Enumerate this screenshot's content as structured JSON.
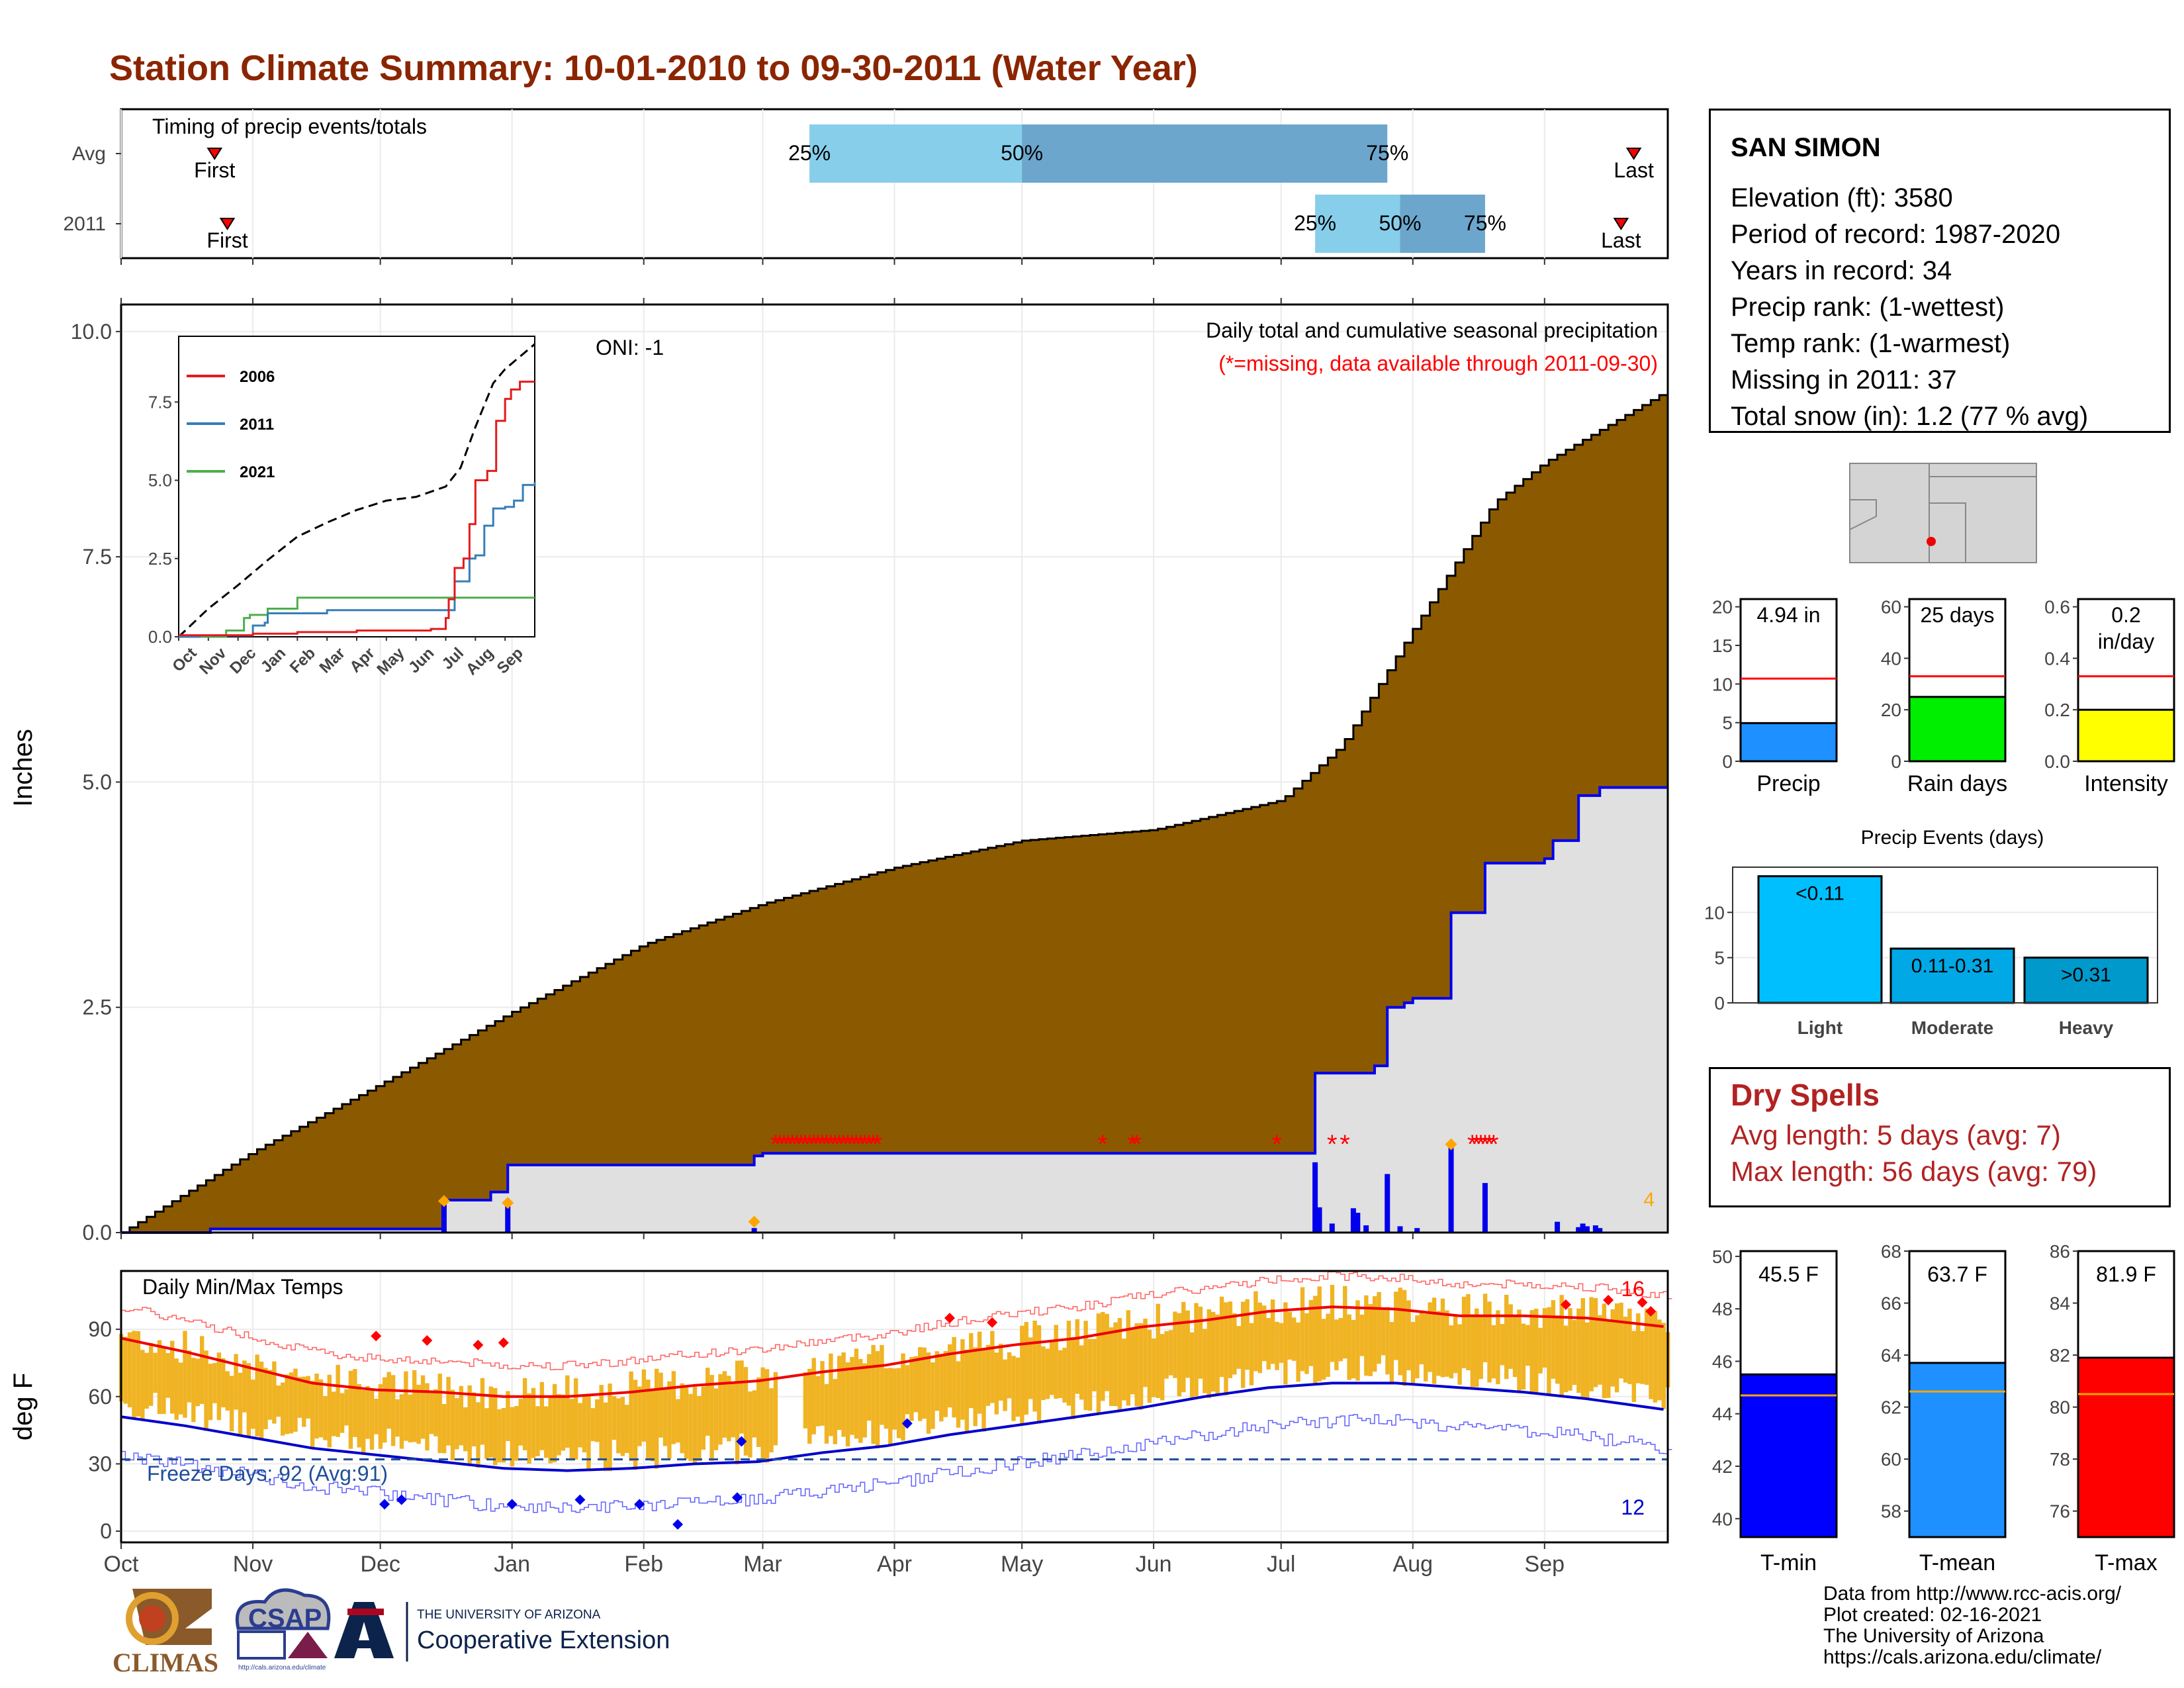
{
  "title": "Station Climate Summary: 10-01-2010 to 09-30-2011 (Water Year)",
  "station": {
    "name": "SAN SIMON",
    "lines": [
      "Elevation (ft): 3580",
      "Period of record: 1987-2020",
      "Years in record: 34",
      "Precip rank:  (1-wettest)",
      "Temp rank:  (1-warmest)",
      "Missing in 2011: 37",
      "Total snow (in): 1.2 (77 % avg)"
    ]
  },
  "timing_panel": {
    "label": "Timing of precip events/totals",
    "rows": [
      {
        "name": "Avg",
        "first": "2010-10-23",
        "p25": "2011-03-12",
        "p50": "2011-05-01",
        "p75": "2011-07-26",
        "last": "2011-09-22",
        "first_label": "First",
        "last_label": "Last",
        "p25_label": "25%",
        "p50_label": "50%",
        "p75_label": "75%"
      },
      {
        "name": "2011",
        "first": "2010-10-26",
        "p25": "2011-07-09",
        "p50": "2011-07-29",
        "p75": "2011-08-18",
        "last": "2011-09-19",
        "first_label": "First",
        "last_label": "Last",
        "p25_label": "25%",
        "p50_label": "50%",
        "p75_label": "75%"
      }
    ]
  },
  "precip_panel": {
    "ylabel": "Inches",
    "y_ticks": [
      "0.0",
      "2.5",
      "5.0",
      "7.5",
      "10.0"
    ],
    "ylim": [
      0,
      10.3
    ],
    "oni_label": "ONI: -1",
    "header": "Daily total and cumulative seasonal precipitation",
    "missing_note": "(*=missing, data available through 2011-09-30)",
    "corner_count": "4",
    "avg_cumulative_knots": [
      [
        "2010-10-01",
        0.0
      ],
      [
        "2010-11-01",
        0.9
      ],
      [
        "2010-12-01",
        1.65
      ],
      [
        "2011-01-01",
        2.45
      ],
      [
        "2011-02-01",
        3.2
      ],
      [
        "2011-03-01",
        3.65
      ],
      [
        "2011-04-01",
        4.05
      ],
      [
        "2011-05-01",
        4.35
      ],
      [
        "2011-06-01",
        4.47
      ],
      [
        "2011-07-01",
        4.8
      ],
      [
        "2011-07-15",
        5.4
      ],
      [
        "2011-08-01",
        6.7
      ],
      [
        "2011-08-20",
        8.1
      ],
      [
        "2011-09-01",
        8.55
      ],
      [
        "2011-09-30",
        9.35
      ]
    ],
    "cumulative_2011_steps": [
      [
        "2010-10-01",
        0.0
      ],
      [
        "2010-10-22",
        0.04
      ],
      [
        "2011-12-16",
        0.0
      ],
      [
        "2010-12-16",
        0.36
      ],
      [
        "2010-12-27",
        0.45
      ],
      [
        "2010-12-31",
        0.75
      ],
      [
        "2011-02-27",
        0.85
      ],
      [
        "2011-03-01",
        0.88
      ],
      [
        "2011-07-09",
        1.77
      ],
      [
        "2011-07-23",
        1.85
      ],
      [
        "2011-07-26",
        2.5
      ],
      [
        "2011-07-30",
        2.55
      ],
      [
        "2011-08-01",
        2.6
      ],
      [
        "2011-08-10",
        3.55
      ],
      [
        "2011-08-18",
        4.1
      ],
      [
        "2011-09-01",
        4.15
      ],
      [
        "2011-09-03",
        4.35
      ],
      [
        "2011-09-09",
        4.85
      ],
      [
        "2011-09-14",
        4.94
      ],
      [
        "2011-09-30",
        4.94
      ]
    ],
    "daily_bars": [
      [
        "2010-12-16",
        0.32
      ],
      [
        "2010-12-31",
        0.3
      ],
      [
        "2011-02-27",
        0.05
      ],
      [
        "2011-07-09",
        0.78
      ],
      [
        "2011-07-10",
        0.28
      ],
      [
        "2011-07-13",
        0.1
      ],
      [
        "2011-07-18",
        0.27
      ],
      [
        "2011-07-19",
        0.22
      ],
      [
        "2011-07-21",
        0.08
      ],
      [
        "2011-07-26",
        0.65
      ],
      [
        "2011-07-29",
        0.07
      ],
      [
        "2011-08-02",
        0.05
      ],
      [
        "2011-08-10",
        0.95
      ],
      [
        "2011-08-18",
        0.55
      ],
      [
        "2011-09-04",
        0.12
      ],
      [
        "2011-09-09",
        0.06
      ],
      [
        "2011-09-10",
        0.1
      ],
      [
        "2011-09-11",
        0.07
      ],
      [
        "2011-09-13",
        0.08
      ],
      [
        "2011-09-14",
        0.05
      ]
    ],
    "orange_markers": [
      [
        "2010-12-16",
        0.35
      ],
      [
        "2010-12-31",
        0.33
      ],
      [
        "2011-02-27",
        0.12
      ],
      [
        "2011-08-10",
        0.98
      ]
    ],
    "missing_markers": [
      "2011-03-04",
      "2011-03-05",
      "2011-03-06",
      "2011-03-07",
      "2011-03-08",
      "2011-03-09",
      "2011-03-10",
      "2011-03-11",
      "2011-03-12",
      "2011-03-13",
      "2011-03-14",
      "2011-03-15",
      "2011-03-16",
      "2011-03-17",
      "2011-03-18",
      "2011-03-19",
      "2011-03-20",
      "2011-03-21",
      "2011-03-22",
      "2011-03-23",
      "2011-03-24",
      "2011-03-25",
      "2011-03-26",
      "2011-03-27",
      "2011-03-28",
      "2011-05-20",
      "2011-05-27",
      "2011-05-28",
      "2011-06-30",
      "2011-07-13",
      "2011-07-16",
      "2011-08-15",
      "2011-08-16",
      "2011-08-17",
      "2011-08-18",
      "2011-08-19",
      "2011-08-20"
    ]
  },
  "inset": {
    "legend": [
      "2006",
      "2011",
      "2021"
    ],
    "colors": [
      "#e41a1c",
      "#377eb8",
      "#4daf4a"
    ],
    "y_ticks": [
      "0.0",
      "2.5",
      "5.0",
      "7.5"
    ],
    "months": [
      "Oct",
      "Nov",
      "Dec",
      "Jan",
      "Feb",
      "Mar",
      "Apr",
      "May",
      "Jun",
      "Jul",
      "Aug",
      "Sep"
    ],
    "avg": [
      [
        0,
        0
      ],
      [
        1,
        0.9
      ],
      [
        2,
        1.65
      ],
      [
        3,
        2.45
      ],
      [
        4,
        3.2
      ],
      [
        5,
        3.65
      ],
      [
        6,
        4.05
      ],
      [
        7,
        4.35
      ],
      [
        8,
        4.47
      ],
      [
        9,
        4.8
      ],
      [
        9.5,
        5.4
      ],
      [
        10,
        6.7
      ],
      [
        10.6,
        8.1
      ],
      [
        11,
        8.55
      ],
      [
        12,
        9.35
      ]
    ],
    "series_2006": [
      [
        0,
        0.05
      ],
      [
        2.5,
        0.1
      ],
      [
        4,
        0.15
      ],
      [
        6,
        0.2
      ],
      [
        8.5,
        0.25
      ],
      [
        9,
        0.6
      ],
      [
        9.1,
        1.2
      ],
      [
        9.3,
        2.2
      ],
      [
        9.6,
        2.5
      ],
      [
        9.8,
        3.6
      ],
      [
        10.0,
        5.0
      ],
      [
        10.4,
        5.3
      ],
      [
        10.7,
        6.9
      ],
      [
        11,
        7.6
      ],
      [
        11.2,
        7.9
      ],
      [
        11.5,
        8.15
      ],
      [
        12,
        8.15
      ]
    ],
    "series_2011": [
      [
        0,
        0
      ],
      [
        0.7,
        0.04
      ],
      [
        2.5,
        0.36
      ],
      [
        2.9,
        0.45
      ],
      [
        3.0,
        0.75
      ],
      [
        5,
        0.85
      ],
      [
        9.3,
        1.77
      ],
      [
        9.8,
        2.5
      ],
      [
        10.0,
        2.6
      ],
      [
        10.3,
        3.55
      ],
      [
        10.6,
        4.1
      ],
      [
        11,
        4.15
      ],
      [
        11.3,
        4.35
      ],
      [
        11.6,
        4.85
      ],
      [
        12,
        4.94
      ]
    ],
    "series_2021": [
      [
        0,
        0
      ],
      [
        1.6,
        0.2
      ],
      [
        2.2,
        0.6
      ],
      [
        2.4,
        0.7
      ],
      [
        3.0,
        0.9
      ],
      [
        4.0,
        1.25
      ],
      [
        12,
        1.25
      ]
    ]
  },
  "temp_panel": {
    "label": "Daily Min/Max Temps",
    "ylabel": "deg F",
    "y_ticks": [
      "0",
      "30",
      "60",
      "90"
    ],
    "ylim": [
      -5,
      116
    ],
    "freeze_label": "Freeze Days: 92 (Avg:91)",
    "max_count": "16",
    "min_count": "12",
    "freeze_line": 32,
    "avg_tmax_knots": [
      [
        0,
        86
      ],
      [
        15,
        80
      ],
      [
        30,
        73
      ],
      [
        45,
        66
      ],
      [
        60,
        63
      ],
      [
        75,
        62
      ],
      [
        90,
        60
      ],
      [
        105,
        60
      ],
      [
        120,
        62
      ],
      [
        135,
        65
      ],
      [
        150,
        67
      ],
      [
        165,
        71
      ],
      [
        180,
        74
      ],
      [
        195,
        79
      ],
      [
        210,
        83
      ],
      [
        225,
        86
      ],
      [
        240,
        91
      ],
      [
        255,
        94
      ],
      [
        270,
        98
      ],
      [
        285,
        100
      ],
      [
        300,
        99
      ],
      [
        315,
        96
      ],
      [
        330,
        96
      ],
      [
        345,
        95
      ],
      [
        364,
        91
      ]
    ],
    "avg_tmin_knots": [
      [
        0,
        51
      ],
      [
        15,
        47
      ],
      [
        30,
        42
      ],
      [
        45,
        37
      ],
      [
        60,
        34
      ],
      [
        75,
        31
      ],
      [
        90,
        28
      ],
      [
        105,
        27
      ],
      [
        120,
        28
      ],
      [
        135,
        30
      ],
      [
        150,
        31
      ],
      [
        165,
        35
      ],
      [
        180,
        38
      ],
      [
        195,
        43
      ],
      [
        210,
        47
      ],
      [
        225,
        51
      ],
      [
        240,
        55
      ],
      [
        255,
        60
      ],
      [
        270,
        64
      ],
      [
        285,
        66
      ],
      [
        300,
        66
      ],
      [
        315,
        64
      ],
      [
        330,
        62
      ],
      [
        345,
        59
      ],
      [
        364,
        54
      ]
    ],
    "gap_ranges": [
      [
        155,
        160
      ]
    ]
  },
  "x_months": [
    "Oct",
    "Nov",
    "Dec",
    "Jan",
    "Feb",
    "Mar",
    "Apr",
    "May",
    "Jun",
    "Jul",
    "Aug",
    "Sep"
  ],
  "side_bars": {
    "precip": {
      "box_value": "4.94 in",
      "label": "Precip",
      "value": 4.94,
      "avg": 10.7,
      "ylim": [
        0,
        21
      ],
      "ticks": [
        "0",
        "5",
        "10",
        "15",
        "20"
      ],
      "tick_vals": [
        0,
        5,
        10,
        15,
        20
      ],
      "color": "#1e90ff"
    },
    "rain_days": {
      "box_value": "25 days",
      "label": "Rain days",
      "value": 25,
      "avg": 33,
      "ylim": [
        0,
        63
      ],
      "ticks": [
        "0",
        "20",
        "40",
        "60"
      ],
      "tick_vals": [
        0,
        20,
        40,
        60
      ],
      "color": "#00ee00"
    },
    "intensity": {
      "box_value_1": "0.2",
      "box_value_2": "in/day",
      "label": "Intensity",
      "value": 0.2,
      "avg": 0.33,
      "ylim": [
        0,
        0.63
      ],
      "ticks": [
        "0.0",
        "0.2",
        "0.4",
        "0.6"
      ],
      "tick_vals": [
        0,
        0.2,
        0.4,
        0.6
      ],
      "color": "#ffff00"
    }
  },
  "events": {
    "title": "Precip Events (days)",
    "categories": [
      "Light",
      "Moderate",
      "Heavy"
    ],
    "bar_labels": [
      "<0.11",
      "0.11-0.31",
      ">0.31"
    ],
    "values": [
      14,
      6,
      5
    ],
    "colors": [
      "#00bfff",
      "#00a8e6",
      "#0099cc"
    ],
    "ticks": [
      "0",
      "5",
      "10"
    ],
    "ylim": [
      0,
      15
    ]
  },
  "dry_spells": {
    "title": "Dry Spells",
    "avg_line": "Avg length: 5 days (avg: 7)",
    "max_line": "Max length: 56 days (avg: 79)"
  },
  "temp_bars": {
    "tmin": {
      "box_value": "45.5 F",
      "label": "T-min",
      "value": 45.5,
      "avg": 44.7,
      "ylim": [
        39.3,
        50.2
      ],
      "ticks": [
        "40",
        "42",
        "44",
        "46",
        "48",
        "50"
      ],
      "tick_vals": [
        40,
        42,
        44,
        46,
        48,
        50
      ],
      "color": "#0000ff"
    },
    "tmean": {
      "box_value": "63.7 F",
      "label": "T-mean",
      "value": 63.7,
      "avg": 62.6,
      "ylim": [
        57.0,
        68.0
      ],
      "ticks": [
        "58",
        "60",
        "62",
        "64",
        "66",
        "68"
      ],
      "tick_vals": [
        58,
        60,
        62,
        64,
        66,
        68
      ],
      "color": "#1e90ff"
    },
    "tmax": {
      "box_value": "81.9 F",
      "label": "T-max",
      "value": 81.9,
      "avg": 80.5,
      "ylim": [
        75.0,
        86.0
      ],
      "ticks": [
        "76",
        "78",
        "80",
        "82",
        "84",
        "86"
      ],
      "tick_vals": [
        76,
        78,
        80,
        82,
        84,
        86
      ],
      "color": "#ff0000"
    }
  },
  "credits": [
    "Data from http://www.rcc-acis.org/",
    "Plot created: 02-16-2021",
    "The University of Arizona",
    "https://cals.arizona.edu/climate/"
  ],
  "logos": {
    "climas": "CLIMAS",
    "csap": "CSAP",
    "csap_url": "http://cals.arizona.edu/climate",
    "ua_small": "THE UNIVERSITY OF ARIZONA",
    "coop": "Cooperative Extension"
  }
}
